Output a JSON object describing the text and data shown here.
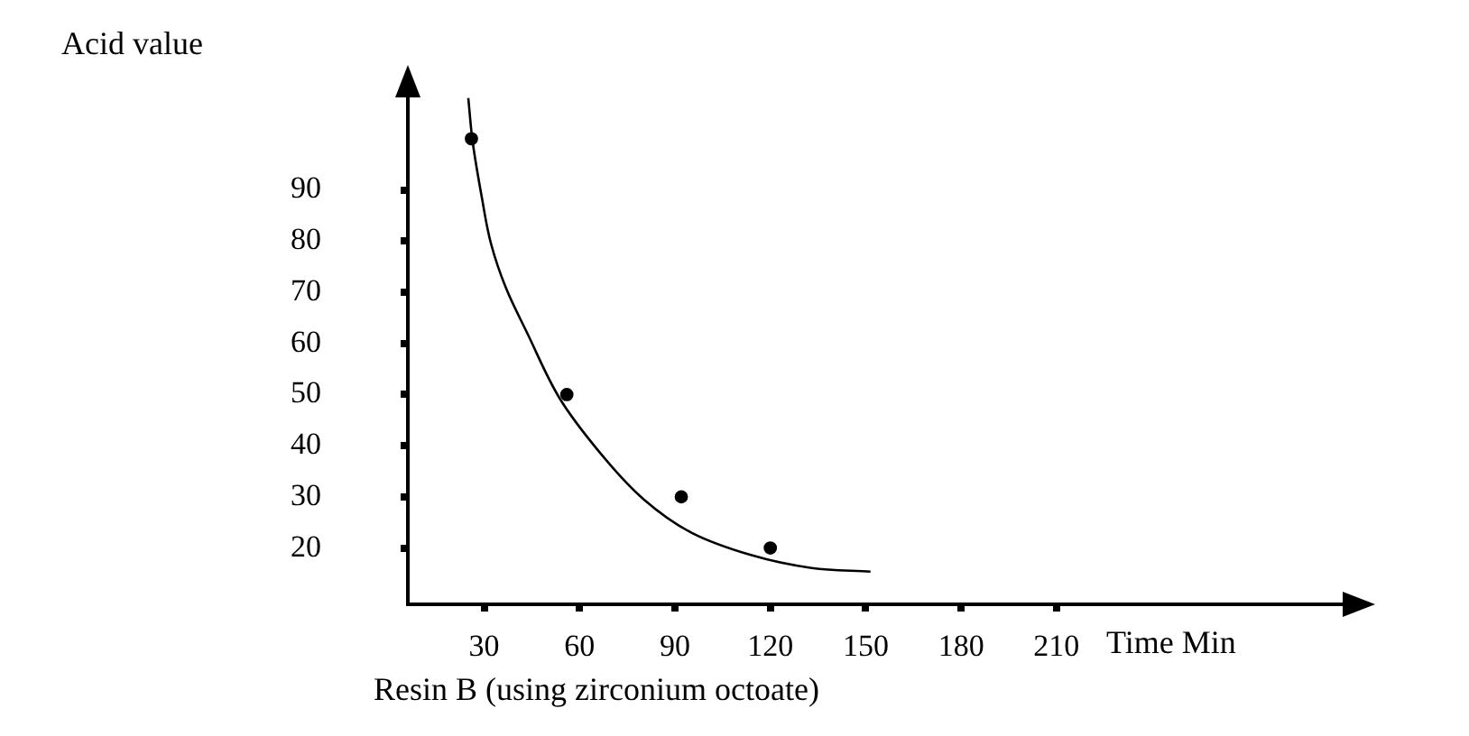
{
  "chart_data": {
    "type": "scatter",
    "ylabel": "Acid value",
    "xlabel": "Time Min",
    "annotations": [
      "Resin B (using zirconium octoate)"
    ],
    "xlim": [
      6,
      300
    ],
    "xticks": [
      30,
      60,
      90,
      120,
      150,
      180,
      210
    ],
    "ylim": [
      9,
      108
    ],
    "yticks": [
      20,
      30,
      40,
      50,
      60,
      70,
      80,
      90
    ],
    "grid": false,
    "legend": false,
    "marker": "circle",
    "series": [
      {
        "color": "#000000",
        "x": [
          26,
          56,
          92,
          120
        ],
        "values": [
          100,
          50,
          30,
          20
        ]
      },
      {
        "type": "line",
        "color": "#000000",
        "marker": "none",
        "x": [
          25,
          26.4,
          29.3,
          32.1,
          36.8,
          43.4,
          53.8,
          67,
          80.2,
          95.2,
          114.1,
          133,
          151.5
        ],
        "values": [
          108,
          99.3,
          88.4,
          79.6,
          70.9,
          62.2,
          49.2,
          38.2,
          29.5,
          23,
          18.6,
          16.1,
          15.4
        ]
      }
    ]
  }
}
